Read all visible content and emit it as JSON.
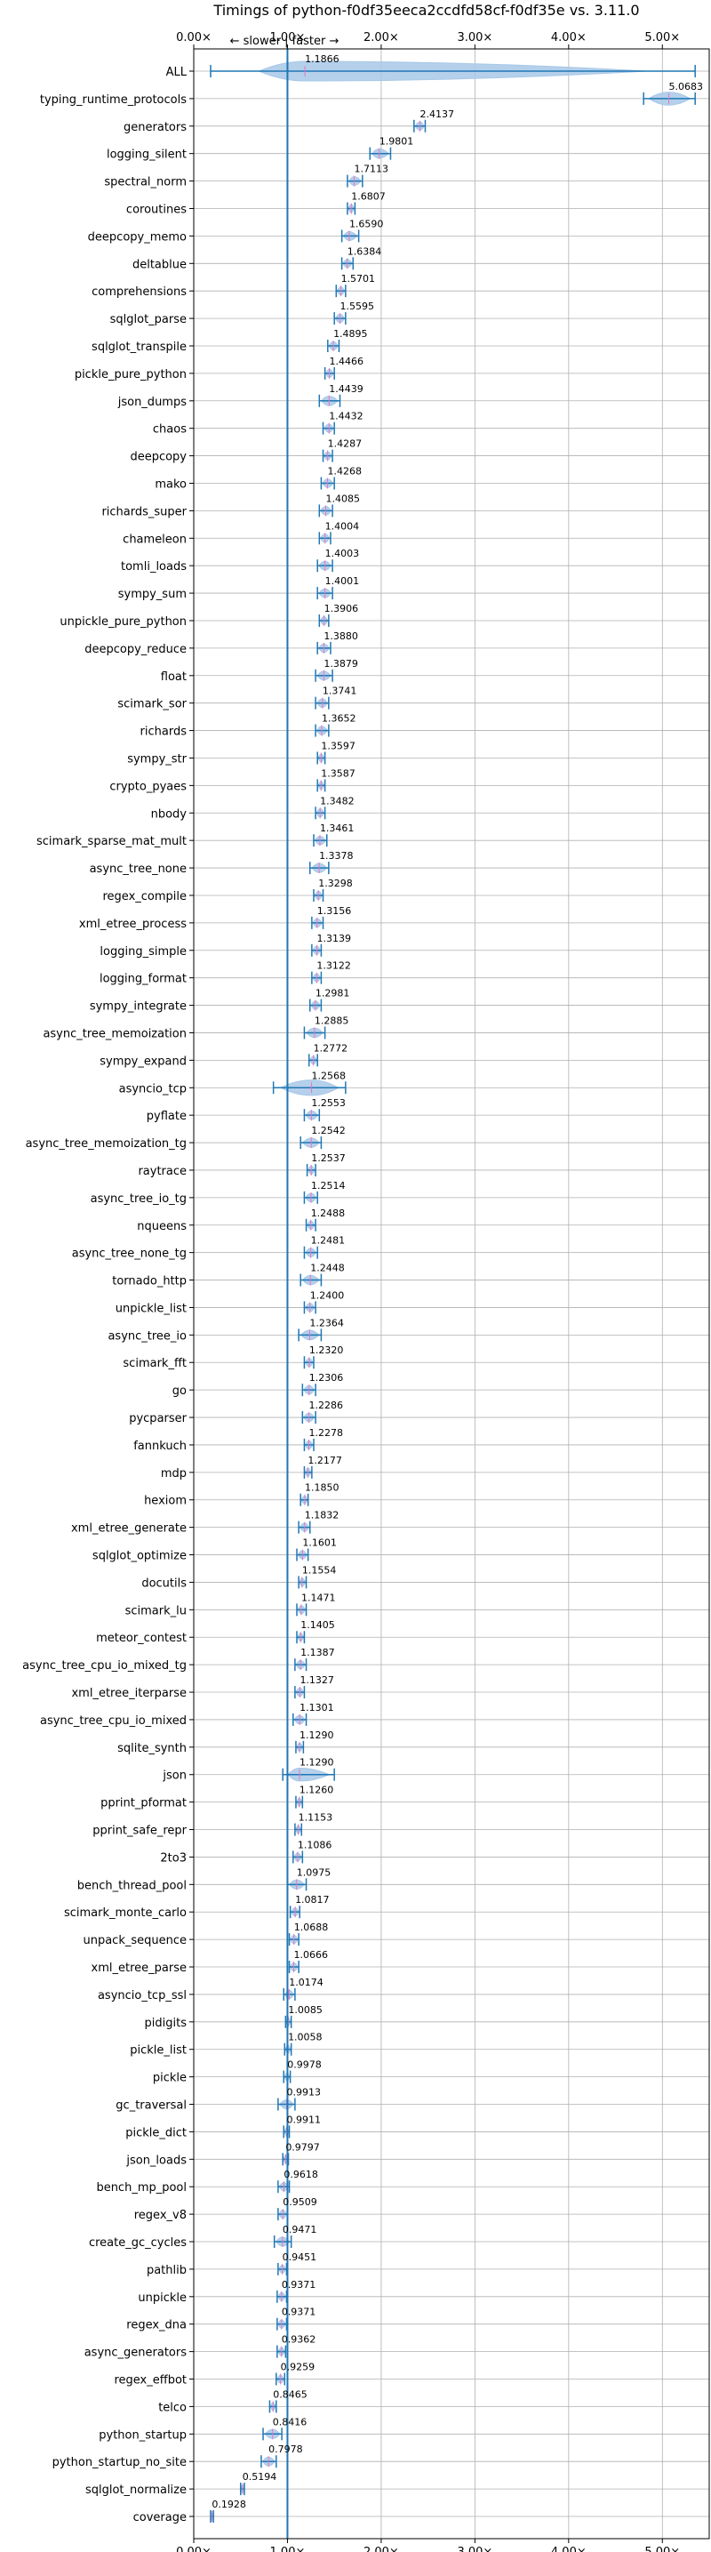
{
  "chart_data": {
    "type": "violin-horizontal",
    "title": "Timings of python-f0df35eeca2ccdfd58cf-f0df35e vs. 3.11.0",
    "direction_note": "← slower | faster →",
    "xlim": [
      0,
      5.5
    ],
    "x_ticks": [
      0,
      1,
      2,
      3,
      4,
      5
    ],
    "x_tick_labels": [
      "0.00×",
      "1.00×",
      "2.00×",
      "3.00×",
      "4.00×",
      "5.00×"
    ],
    "reference_line": 1.0,
    "grid": true,
    "colors": {
      "violin": "#a8c8e8",
      "accent": "#1f77b4",
      "median_mark": "#e377c2"
    },
    "benchmarks": [
      {
        "name": "ALL",
        "value": 1.1866,
        "low": 0.18,
        "high": 5.35,
        "label": "1.1866"
      },
      {
        "name": "typing_runtime_protocols",
        "value": 5.0683,
        "low": 4.8,
        "high": 5.35,
        "label": "5.0683"
      },
      {
        "name": "generators",
        "value": 2.4137,
        "low": 2.35,
        "high": 2.47,
        "label": "2.4137"
      },
      {
        "name": "logging_silent",
        "value": 1.9801,
        "low": 1.88,
        "high": 2.1,
        "label": "1.9801"
      },
      {
        "name": "spectral_norm",
        "value": 1.7113,
        "low": 1.64,
        "high": 1.8,
        "label": "1.7113"
      },
      {
        "name": "coroutines",
        "value": 1.6807,
        "low": 1.64,
        "high": 1.72,
        "label": "1.6807"
      },
      {
        "name": "deepcopy_memo",
        "value": 1.659,
        "low": 1.58,
        "high": 1.76,
        "label": "1.6590"
      },
      {
        "name": "deltablue",
        "value": 1.6384,
        "low": 1.58,
        "high": 1.7,
        "label": "1.6384"
      },
      {
        "name": "comprehensions",
        "value": 1.5701,
        "low": 1.52,
        "high": 1.62,
        "label": "1.5701"
      },
      {
        "name": "sqlglot_parse",
        "value": 1.5595,
        "low": 1.5,
        "high": 1.62,
        "label": "1.5595"
      },
      {
        "name": "sqlglot_transpile",
        "value": 1.4895,
        "low": 1.43,
        "high": 1.55,
        "label": "1.4895"
      },
      {
        "name": "pickle_pure_python",
        "value": 1.4466,
        "low": 1.4,
        "high": 1.5,
        "label": "1.4466"
      },
      {
        "name": "json_dumps",
        "value": 1.4439,
        "low": 1.34,
        "high": 1.56,
        "label": "1.4439"
      },
      {
        "name": "chaos",
        "value": 1.4432,
        "low": 1.38,
        "high": 1.5,
        "label": "1.4432"
      },
      {
        "name": "deepcopy",
        "value": 1.4287,
        "low": 1.38,
        "high": 1.48,
        "label": "1.4287"
      },
      {
        "name": "mako",
        "value": 1.4268,
        "low": 1.36,
        "high": 1.5,
        "label": "1.4268"
      },
      {
        "name": "richards_super",
        "value": 1.4085,
        "low": 1.34,
        "high": 1.48,
        "label": "1.4085"
      },
      {
        "name": "chameleon",
        "value": 1.4004,
        "low": 1.34,
        "high": 1.46,
        "label": "1.4004"
      },
      {
        "name": "tomli_loads",
        "value": 1.4003,
        "low": 1.32,
        "high": 1.48,
        "label": "1.4003"
      },
      {
        "name": "sympy_sum",
        "value": 1.4001,
        "low": 1.32,
        "high": 1.48,
        "label": "1.4001"
      },
      {
        "name": "unpickle_pure_python",
        "value": 1.3906,
        "low": 1.34,
        "high": 1.44,
        "label": "1.3906"
      },
      {
        "name": "deepcopy_reduce",
        "value": 1.388,
        "low": 1.32,
        "high": 1.46,
        "label": "1.3880"
      },
      {
        "name": "float",
        "value": 1.3879,
        "low": 1.3,
        "high": 1.48,
        "label": "1.3879"
      },
      {
        "name": "scimark_sor",
        "value": 1.3741,
        "low": 1.3,
        "high": 1.44,
        "label": "1.3741"
      },
      {
        "name": "richards",
        "value": 1.3652,
        "low": 1.3,
        "high": 1.44,
        "label": "1.3652"
      },
      {
        "name": "sympy_str",
        "value": 1.3597,
        "low": 1.32,
        "high": 1.4,
        "label": "1.3597"
      },
      {
        "name": "crypto_pyaes",
        "value": 1.3587,
        "low": 1.32,
        "high": 1.4,
        "label": "1.3587"
      },
      {
        "name": "nbody",
        "value": 1.3482,
        "low": 1.3,
        "high": 1.4,
        "label": "1.3482"
      },
      {
        "name": "scimark_sparse_mat_mult",
        "value": 1.3461,
        "low": 1.28,
        "high": 1.42,
        "label": "1.3461"
      },
      {
        "name": "async_tree_none",
        "value": 1.3378,
        "low": 1.24,
        "high": 1.44,
        "label": "1.3378"
      },
      {
        "name": "regex_compile",
        "value": 1.3298,
        "low": 1.28,
        "high": 1.38,
        "label": "1.3298"
      },
      {
        "name": "xml_etree_process",
        "value": 1.3156,
        "low": 1.26,
        "high": 1.38,
        "label": "1.3156"
      },
      {
        "name": "logging_simple",
        "value": 1.3139,
        "low": 1.26,
        "high": 1.36,
        "label": "1.3139"
      },
      {
        "name": "logging_format",
        "value": 1.3122,
        "low": 1.26,
        "high": 1.36,
        "label": "1.3122"
      },
      {
        "name": "sympy_integrate",
        "value": 1.2981,
        "low": 1.24,
        "high": 1.36,
        "label": "1.2981"
      },
      {
        "name": "async_tree_memoization",
        "value": 1.2885,
        "low": 1.18,
        "high": 1.4,
        "label": "1.2885"
      },
      {
        "name": "sympy_expand",
        "value": 1.2772,
        "low": 1.23,
        "high": 1.32,
        "label": "1.2772"
      },
      {
        "name": "asyncio_tcp",
        "value": 1.2568,
        "low": 0.85,
        "high": 1.62,
        "label": "1.2568"
      },
      {
        "name": "pyflate",
        "value": 1.2553,
        "low": 1.18,
        "high": 1.34,
        "label": "1.2553"
      },
      {
        "name": "async_tree_memoization_tg",
        "value": 1.2542,
        "low": 1.14,
        "high": 1.36,
        "label": "1.2542"
      },
      {
        "name": "raytrace",
        "value": 1.2537,
        "low": 1.21,
        "high": 1.3,
        "label": "1.2537"
      },
      {
        "name": "async_tree_io_tg",
        "value": 1.2514,
        "low": 1.18,
        "high": 1.32,
        "label": "1.2514"
      },
      {
        "name": "nqueens",
        "value": 1.2488,
        "low": 1.2,
        "high": 1.3,
        "label": "1.2488"
      },
      {
        "name": "async_tree_none_tg",
        "value": 1.2481,
        "low": 1.18,
        "high": 1.32,
        "label": "1.2481"
      },
      {
        "name": "tornado_http",
        "value": 1.2448,
        "low": 1.14,
        "high": 1.36,
        "label": "1.2448"
      },
      {
        "name": "unpickle_list",
        "value": 1.24,
        "low": 1.18,
        "high": 1.3,
        "label": "1.2400"
      },
      {
        "name": "async_tree_io",
        "value": 1.2364,
        "low": 1.12,
        "high": 1.36,
        "label": "1.2364"
      },
      {
        "name": "scimark_fft",
        "value": 1.232,
        "low": 1.18,
        "high": 1.28,
        "label": "1.2320"
      },
      {
        "name": "go",
        "value": 1.2306,
        "low": 1.16,
        "high": 1.3,
        "label": "1.2306"
      },
      {
        "name": "pycparser",
        "value": 1.2286,
        "low": 1.16,
        "high": 1.3,
        "label": "1.2286"
      },
      {
        "name": "fannkuch",
        "value": 1.2278,
        "low": 1.18,
        "high": 1.28,
        "label": "1.2278"
      },
      {
        "name": "mdp",
        "value": 1.2177,
        "low": 1.18,
        "high": 1.26,
        "label": "1.2177"
      },
      {
        "name": "hexiom",
        "value": 1.185,
        "low": 1.14,
        "high": 1.22,
        "label": "1.1850"
      },
      {
        "name": "xml_etree_generate",
        "value": 1.1832,
        "low": 1.12,
        "high": 1.24,
        "label": "1.1832"
      },
      {
        "name": "sqlglot_optimize",
        "value": 1.1601,
        "low": 1.1,
        "high": 1.22,
        "label": "1.1601"
      },
      {
        "name": "docutils",
        "value": 1.1554,
        "low": 1.12,
        "high": 1.2,
        "label": "1.1554"
      },
      {
        "name": "scimark_lu",
        "value": 1.1471,
        "low": 1.1,
        "high": 1.2,
        "label": "1.1471"
      },
      {
        "name": "meteor_contest",
        "value": 1.1405,
        "low": 1.1,
        "high": 1.18,
        "label": "1.1405"
      },
      {
        "name": "async_tree_cpu_io_mixed_tg",
        "value": 1.1387,
        "low": 1.08,
        "high": 1.2,
        "label": "1.1387"
      },
      {
        "name": "xml_etree_iterparse",
        "value": 1.1327,
        "low": 1.08,
        "high": 1.18,
        "label": "1.1327"
      },
      {
        "name": "async_tree_cpu_io_mixed",
        "value": 1.1301,
        "low": 1.06,
        "high": 1.2,
        "label": "1.1301"
      },
      {
        "name": "sqlite_synth",
        "value": 1.129,
        "low": 1.09,
        "high": 1.17,
        "label": "1.1290"
      },
      {
        "name": "json",
        "value": 1.129,
        "low": 0.95,
        "high": 1.5,
        "label": "1.1290"
      },
      {
        "name": "pprint_pformat",
        "value": 1.126,
        "low": 1.09,
        "high": 1.16,
        "label": "1.1260"
      },
      {
        "name": "pprint_safe_repr",
        "value": 1.1153,
        "low": 1.08,
        "high": 1.15,
        "label": "1.1153"
      },
      {
        "name": "2to3",
        "value": 1.1086,
        "low": 1.06,
        "high": 1.16,
        "label": "1.1086"
      },
      {
        "name": "bench_thread_pool",
        "value": 1.0975,
        "low": 1.0,
        "high": 1.2,
        "label": "1.0975"
      },
      {
        "name": "scimark_monte_carlo",
        "value": 1.0817,
        "low": 1.03,
        "high": 1.13,
        "label": "1.0817"
      },
      {
        "name": "unpack_sequence",
        "value": 1.0688,
        "low": 1.02,
        "high": 1.12,
        "label": "1.0688"
      },
      {
        "name": "xml_etree_parse",
        "value": 1.0666,
        "low": 1.02,
        "high": 1.12,
        "label": "1.0666"
      },
      {
        "name": "asyncio_tcp_ssl",
        "value": 1.0174,
        "low": 0.96,
        "high": 1.08,
        "label": "1.0174"
      },
      {
        "name": "pidigits",
        "value": 1.0085,
        "low": 0.98,
        "high": 1.04,
        "label": "1.0085"
      },
      {
        "name": "pickle_list",
        "value": 1.0058,
        "low": 0.97,
        "high": 1.04,
        "label": "1.0058"
      },
      {
        "name": "pickle",
        "value": 0.9978,
        "low": 0.96,
        "high": 1.03,
        "label": "0.9978"
      },
      {
        "name": "gc_traversal",
        "value": 0.9913,
        "low": 0.9,
        "high": 1.08,
        "label": "0.9913"
      },
      {
        "name": "pickle_dict",
        "value": 0.9911,
        "low": 0.96,
        "high": 1.02,
        "label": "0.9911"
      },
      {
        "name": "json_loads",
        "value": 0.9797,
        "low": 0.95,
        "high": 1.01,
        "label": "0.9797"
      },
      {
        "name": "bench_mp_pool",
        "value": 0.9618,
        "low": 0.9,
        "high": 1.02,
        "label": "0.9618"
      },
      {
        "name": "regex_v8",
        "value": 0.9509,
        "low": 0.9,
        "high": 1.0,
        "label": "0.9509"
      },
      {
        "name": "create_gc_cycles",
        "value": 0.9471,
        "low": 0.86,
        "high": 1.04,
        "label": "0.9471"
      },
      {
        "name": "pathlib",
        "value": 0.9451,
        "low": 0.9,
        "high": 0.99,
        "label": "0.9451"
      },
      {
        "name": "unpickle",
        "value": 0.9371,
        "low": 0.89,
        "high": 0.99,
        "label": "0.9371"
      },
      {
        "name": "regex_dna",
        "value": 0.9371,
        "low": 0.89,
        "high": 0.99,
        "label": "0.9371"
      },
      {
        "name": "async_generators",
        "value": 0.9362,
        "low": 0.89,
        "high": 0.98,
        "label": "0.9362"
      },
      {
        "name": "regex_effbot",
        "value": 0.9259,
        "low": 0.88,
        "high": 0.97,
        "label": "0.9259"
      },
      {
        "name": "telco",
        "value": 0.8465,
        "low": 0.81,
        "high": 0.88,
        "label": "0.8465"
      },
      {
        "name": "python_startup",
        "value": 0.8416,
        "low": 0.74,
        "high": 0.94,
        "label": "0.8416"
      },
      {
        "name": "python_startup_no_site",
        "value": 0.7978,
        "low": 0.72,
        "high": 0.88,
        "label": "0.7978"
      },
      {
        "name": "sqlglot_normalize",
        "value": 0.5194,
        "low": 0.5,
        "high": 0.54,
        "label": "0.5194"
      },
      {
        "name": "coverage",
        "value": 0.1928,
        "low": 0.18,
        "high": 0.21,
        "label": "0.1928"
      }
    ]
  }
}
